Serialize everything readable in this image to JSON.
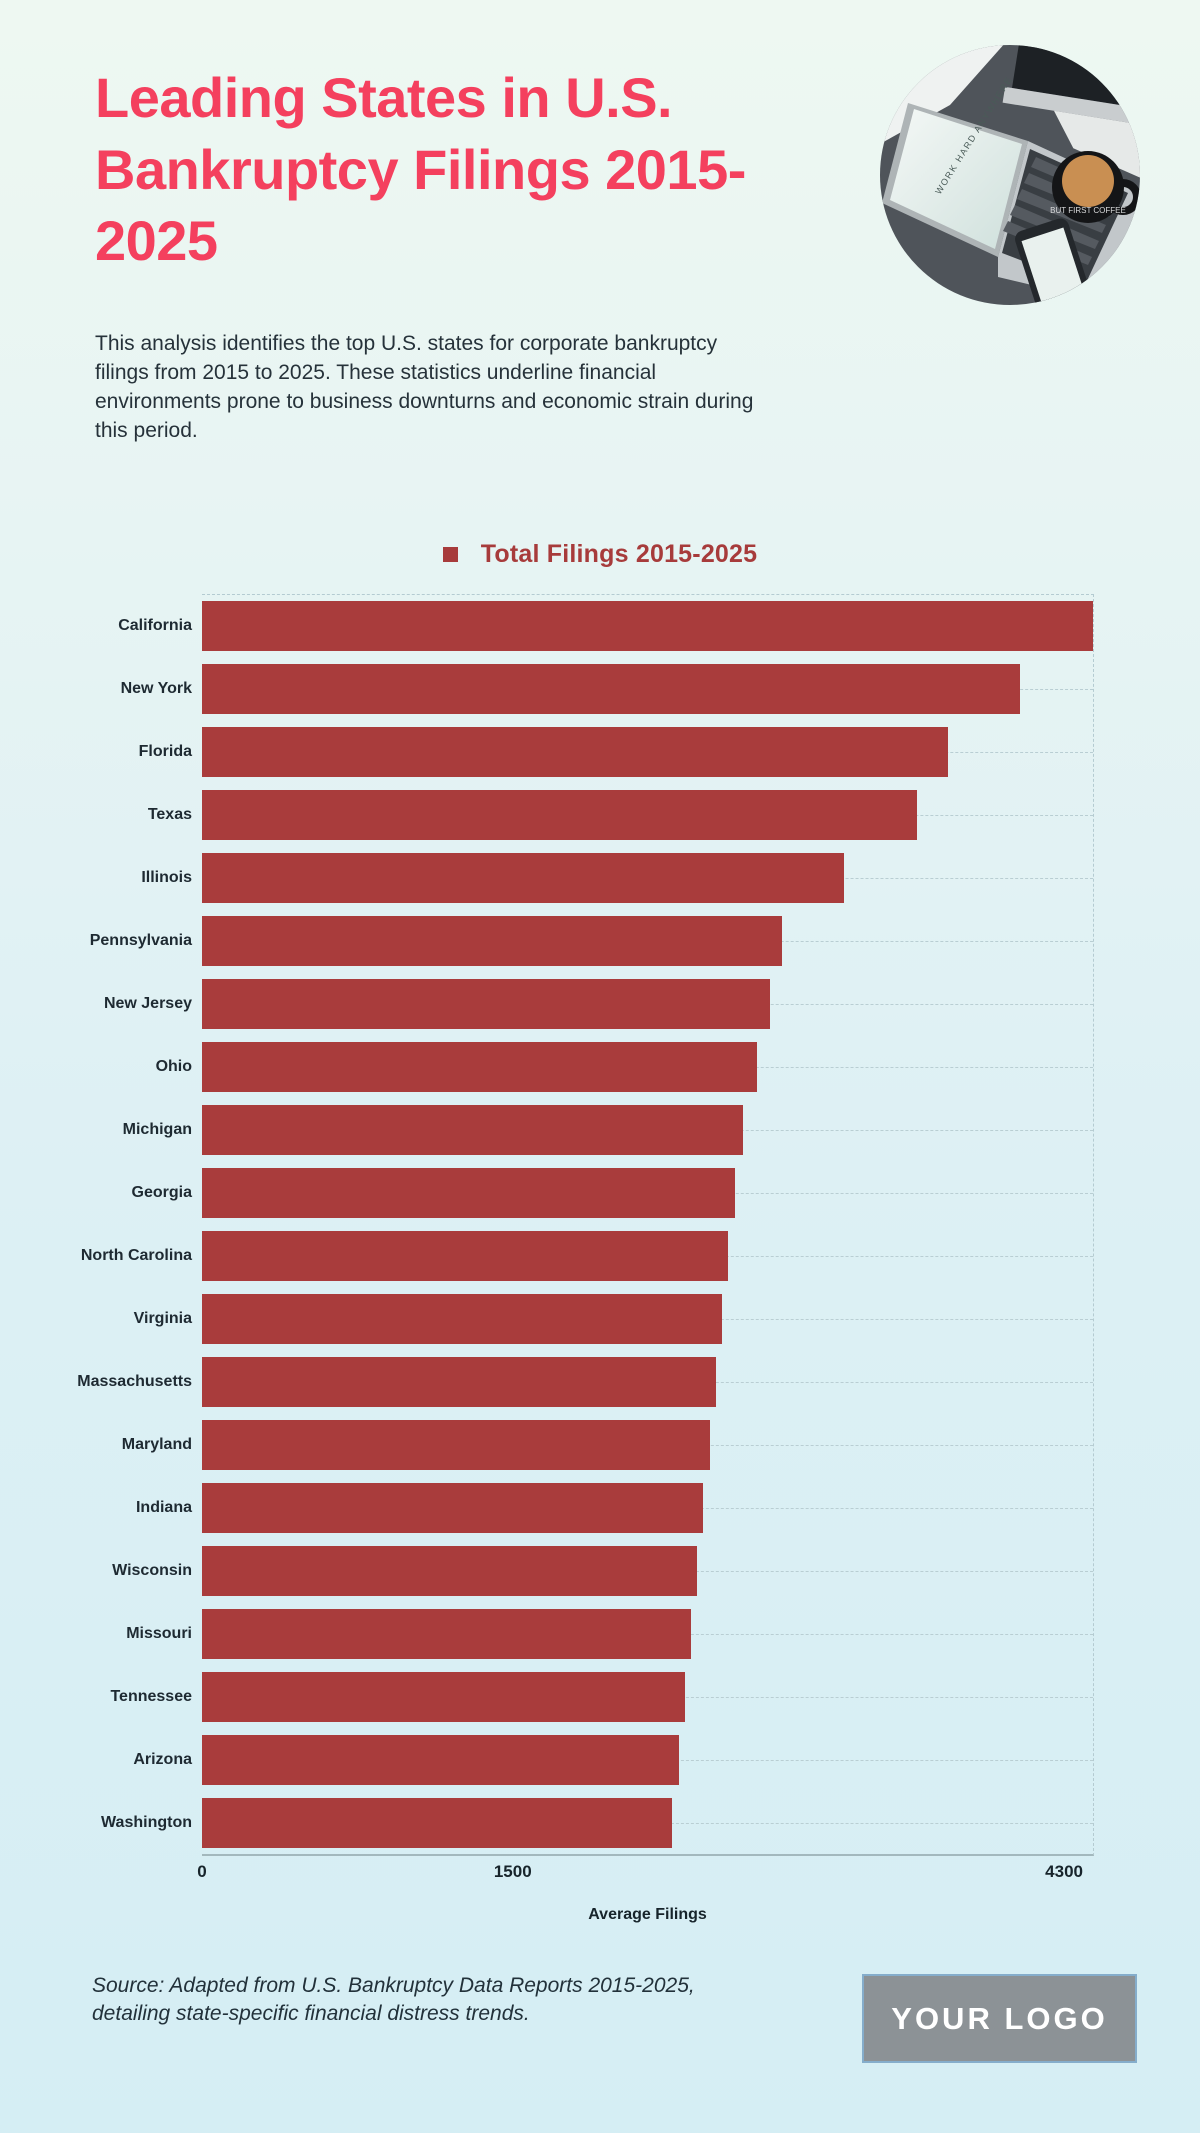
{
  "header": {
    "title": "Leading States in U.S. Bankruptcy Filings 2015-2025",
    "description": "This analysis identifies the top U.S. states for corporate bankruptcy filings from 2015 to 2025. These statistics underline financial environments prone to business downturns and economic strain during this period.",
    "photo": {
      "screen_text": "WORK HARD ANYWHERE",
      "mug_text": "BUT FIRST COFFEE"
    }
  },
  "legend": {
    "label": "Total Filings 2015-2025",
    "marker_color": "#A73B3B"
  },
  "chart_data": {
    "type": "bar",
    "orientation": "horizontal",
    "title": "Total Filings 2015-2025",
    "xlabel": "Average Filings",
    "xlim": [
      0,
      4300
    ],
    "xticks": [
      {
        "value": 0,
        "label": "0"
      },
      {
        "value": 1500,
        "label": "1500"
      },
      {
        "value": 4300,
        "label": "4300"
      }
    ],
    "grid": "dashed",
    "legend_position": "top-center",
    "bar_color": "#A93C3C",
    "categories": [
      "California",
      "New York",
      "Florida",
      "Texas",
      "Illinois",
      "Pennsylvania",
      "New Jersey",
      "Ohio",
      "Michigan",
      "Georgia",
      "North Carolina",
      "Virginia",
      "Massachusetts",
      "Maryland",
      "Indiana",
      "Wisconsin",
      "Missouri",
      "Tennessee",
      "Arizona",
      "Washington"
    ],
    "values": [
      4300,
      3950,
      3600,
      3450,
      3100,
      2800,
      2740,
      2680,
      2610,
      2570,
      2540,
      2510,
      2480,
      2450,
      2420,
      2390,
      2360,
      2330,
      2300,
      2270
    ]
  },
  "footer": {
    "source_line1": "Source: Adapted from U.S. Bankruptcy Data Reports 2015-2025,",
    "source_line2": "detailing state-specific financial distress trends.",
    "logo_text": "YOUR LOGO"
  },
  "colors": {
    "title": "#F4405E",
    "bar": "#A93C3C",
    "legend_text": "#A73B3B",
    "body_text": "#26323A",
    "grid_dash": "#B4CBD1",
    "background_top": "#EEF8F2",
    "background_bottom": "#D5EEF4",
    "logo_background": "#8C9296"
  }
}
